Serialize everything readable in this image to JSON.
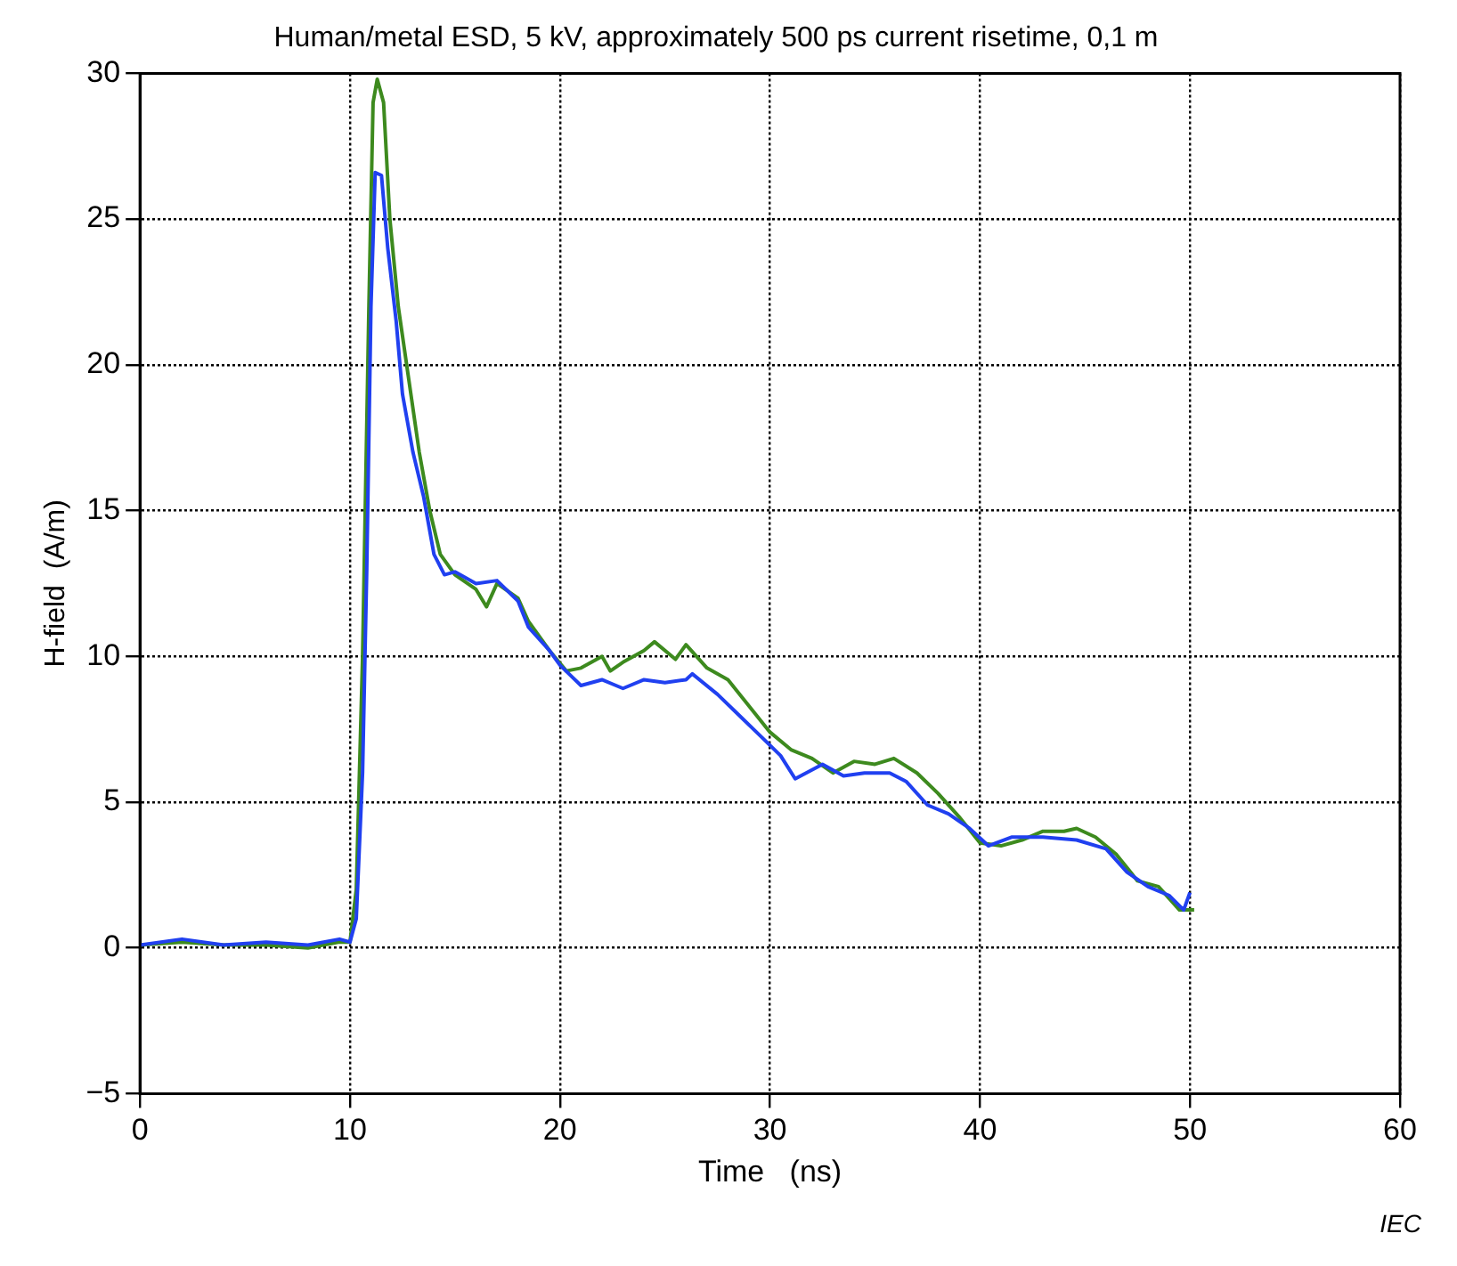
{
  "chart_data": {
    "type": "line",
    "title": "Human/metal ESD, 5 kV, approximately 500 ps current risetime, 0,1 m",
    "xlabel": "Time   (ns)",
    "ylabel": "H-field  (A/m)",
    "annotations": [
      "IEC"
    ],
    "xlim": [
      0,
      60
    ],
    "xticks": [
      0,
      10,
      20,
      30,
      40,
      50,
      60
    ],
    "ylim": [
      -5,
      30
    ],
    "yticks": [
      {
        "value": -5,
        "label": "−5"
      },
      0,
      5,
      10,
      15,
      20,
      25,
      30
    ],
    "grid": true,
    "legend": false,
    "marker": "none",
    "line_style": "solid",
    "series": [
      {
        "color": "#2040f0",
        "x": [
          0,
          2,
          4,
          6,
          8,
          9.5,
          10,
          10.3,
          10.6,
          10.8,
          11,
          11.2,
          11.5,
          11.8,
          12.2,
          12.5,
          13,
          13.5,
          14,
          14.5,
          15,
          16,
          17,
          18,
          18.5,
          19.5,
          20,
          21,
          22,
          23,
          24,
          25,
          26,
          26.3,
          27.5,
          28.5,
          29.5,
          30.5,
          31.2,
          32.5,
          33.5,
          34.5,
          35.7,
          36.5,
          37.5,
          38.5,
          39.5,
          40.4,
          41.5,
          43,
          44.6,
          46,
          47,
          48,
          49,
          49.7,
          50
        ],
        "values": [
          0.1,
          0.3,
          0.1,
          0.2,
          0.1,
          0.3,
          0.2,
          1,
          6,
          13,
          22,
          26.6,
          26.5,
          24,
          21.5,
          19,
          17,
          15.5,
          13.5,
          12.8,
          12.9,
          12.5,
          12.6,
          11.9,
          11,
          10.2,
          9.7,
          9,
          9.2,
          8.9,
          9.2,
          9.1,
          9.2,
          9.4,
          8.7,
          8,
          7.3,
          6.6,
          5.8,
          6.3,
          5.9,
          6,
          6,
          5.7,
          4.9,
          4.6,
          4.1,
          3.5,
          3.8,
          3.8,
          3.7,
          3.4,
          2.6,
          2.1,
          1.8,
          1.3,
          1.9
        ]
      },
      {
        "color": "#3d8a1e",
        "x": [
          0,
          2,
          4,
          6,
          8,
          9.5,
          10,
          10.3,
          10.6,
          10.9,
          11.1,
          11.3,
          11.6,
          11.9,
          12.3,
          12.8,
          13.3,
          13.8,
          14.3,
          15,
          16,
          16.5,
          17,
          18,
          18.5,
          19.5,
          20.3,
          21,
          22,
          22.4,
          23,
          24,
          24.5,
          25.5,
          26,
          27,
          28,
          29,
          30,
          31,
          32,
          33,
          34,
          35,
          35.9,
          37,
          38,
          39,
          40,
          41,
          42,
          43,
          44,
          44.6,
          45.5,
          46.5,
          47.5,
          48.5,
          49.5,
          50.2
        ],
        "values": [
          0.1,
          0.2,
          0.1,
          0.1,
          0,
          0.2,
          0.2,
          2,
          10,
          22,
          29,
          29.8,
          29,
          25,
          22,
          19.5,
          17,
          15,
          13.5,
          12.8,
          12.3,
          11.7,
          12.5,
          12,
          11.2,
          10.2,
          9.5,
          9.6,
          10,
          9.5,
          9.8,
          10.2,
          10.5,
          9.9,
          10.4,
          9.6,
          9.2,
          8.3,
          7.4,
          6.8,
          6.5,
          6,
          6.4,
          6.3,
          6.5,
          6,
          5.3,
          4.5,
          3.6,
          3.5,
          3.7,
          4,
          4,
          4.1,
          3.8,
          3.2,
          2.3,
          2.1,
          1.3,
          1.3
        ]
      }
    ]
  }
}
